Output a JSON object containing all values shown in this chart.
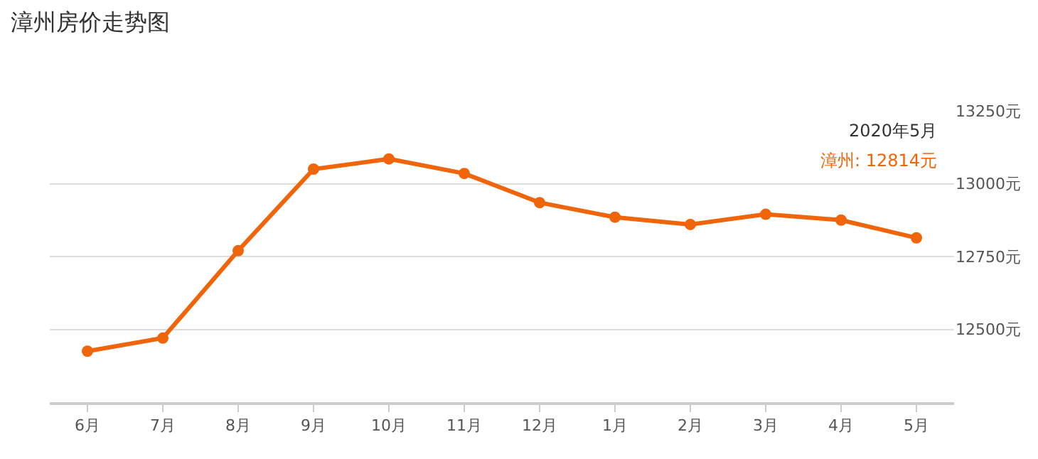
{
  "chart_data": {
    "type": "line",
    "title": "漳州房价走势图",
    "categories": [
      "6月",
      "7月",
      "8月",
      "9月",
      "10月",
      "11月",
      "12月",
      "1月",
      "2月",
      "3月",
      "4月",
      "5月"
    ],
    "series": [
      {
        "color": "#f0640a",
        "values": [
          12425,
          12470,
          12770,
          13050,
          13085,
          13035,
          12935,
          12885,
          12860,
          12895,
          12875,
          12814
        ]
      }
    ],
    "ylim": [
      12250,
      13250
    ],
    "yticks": [
      {
        "value": 12500,
        "label": "12500元"
      },
      {
        "value": 12750,
        "label": "12750元"
      },
      {
        "value": 13000,
        "label": "13000元"
      },
      {
        "value": 13250,
        "label": "13250元"
      }
    ],
    "grid": "y",
    "marker": "circle",
    "line_style": "solid",
    "annotations": [
      "2020年5月",
      "漳州: 12814元"
    ]
  }
}
